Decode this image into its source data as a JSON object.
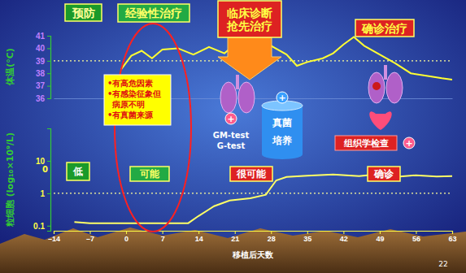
{
  "chart_data": [
    {
      "type": "line",
      "y_label": "体温(°C)",
      "x": [
        -1,
        1,
        3,
        5,
        7,
        10,
        13,
        16,
        19,
        21,
        23,
        26,
        28,
        31,
        33,
        35,
        38,
        40,
        42,
        44,
        46,
        49,
        52,
        55,
        58,
        61,
        63
      ],
      "values": [
        38.3,
        39.4,
        39.8,
        39.2,
        39.9,
        40.0,
        39.5,
        40.1,
        39.6,
        40.3,
        40.6,
        40.0,
        40.2,
        39.5,
        38.6,
        38.9,
        39.2,
        39.6,
        40.3,
        40.9,
        40.2,
        39.5,
        38.8,
        38.0,
        37.8,
        37.6,
        37.5
      ],
      "color": "#ffff33",
      "xlim": [
        -14,
        63
      ],
      "ylim": [
        36,
        41
      ],
      "yticks": [
        36,
        37,
        38,
        39,
        40,
        41
      ],
      "tick_labels": "y",
      "threshold": 39
    },
    {
      "type": "line",
      "y_label": "粒细胞 (log₁₀×10⁹/L)",
      "x_label": "移植后天数",
      "x": [
        -10,
        -7,
        0,
        7,
        12,
        14,
        17,
        20,
        24,
        27,
        29,
        31,
        35,
        40,
        45,
        49,
        52,
        56,
        60,
        63
      ],
      "values": [
        0.13,
        0.12,
        0.12,
        0.12,
        0.12,
        0.2,
        0.4,
        0.6,
        0.7,
        0.9,
        2.5,
        3.2,
        3.5,
        3.8,
        3.4,
        3.9,
        3.2,
        3.6,
        3.3,
        3.4
      ],
      "color": "#ffff66",
      "log": "y",
      "xlim": [
        -14,
        63
      ],
      "xticks": [
        {
          "value": -14,
          "label": "–14"
        },
        {
          "value": -7,
          "label": "–7"
        },
        0,
        7,
        14,
        21,
        28,
        35,
        42,
        49,
        56,
        63
      ],
      "ylim": [
        0.07,
        100
      ],
      "yticks": [
        0.1,
        1,
        10
      ],
      "threshold": 1
    }
  ],
  "diagram": {
    "phases": [
      [
        "预防"
      ],
      [
        "经验性治疗"
      ],
      [
        "临床诊断",
        "抢先治疗"
      ],
      [
        "确诊治疗"
      ]
    ],
    "risk_levels": [
      "低",
      "可能",
      "很可能",
      "确诊"
    ],
    "criteria": [
      "•有高危因素",
      "•有感染征象但病原不明",
      "•有真菌来源"
    ],
    "serology": [
      "GM-test",
      "G-test"
    ],
    "culture": [
      "真菌",
      "培养"
    ],
    "histology": "组织学检查",
    "plus": "+",
    "axis_note": "0",
    "page_number": "22"
  }
}
